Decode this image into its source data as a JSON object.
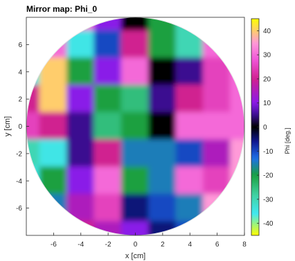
{
  "chart_data": {
    "type": "heatmap",
    "title": "Mirror map: Phi_0",
    "xlabel": "x [cm]",
    "ylabel": "y [cm]",
    "xlim": [
      -8,
      8
    ],
    "ylim": [
      -8,
      8
    ],
    "x_ticks": [
      -6,
      -4,
      -2,
      0,
      2,
      4,
      6,
      8
    ],
    "y_ticks": [
      6,
      4,
      2,
      0,
      -2,
      -4,
      -6
    ],
    "colorbar": {
      "label": "Phi [deg.]",
      "range": [
        -45,
        45
      ],
      "ticks": [
        40,
        30,
        20,
        10,
        0,
        -10,
        -20,
        -30,
        -40
      ],
      "colormap": "cyclic",
      "stops": [
        {
          "value": 45,
          "color": "#ffff00"
        },
        {
          "value": 35,
          "color": "#ff9ad8"
        },
        {
          "value": 28,
          "color": "#f056d8"
        },
        {
          "value": 20,
          "color": "#d02090"
        },
        {
          "value": 10,
          "color": "#8a1ae8"
        },
        {
          "value": 5,
          "color": "#3a1090"
        },
        {
          "value": 0,
          "color": "#000000"
        },
        {
          "value": -6,
          "color": "#101890"
        },
        {
          "value": -13,
          "color": "#1e6fe8"
        },
        {
          "value": -20,
          "color": "#1aa040"
        },
        {
          "value": -28,
          "color": "#40d0a0"
        },
        {
          "value": -36,
          "color": "#40e8f0"
        },
        {
          "value": -45,
          "color": "#ffff00"
        }
      ]
    },
    "aperture": {
      "center_x": 0,
      "center_y": 0,
      "radius": 8
    },
    "data_grid": {
      "x": [
        -8,
        -6,
        -4,
        -2,
        0,
        2,
        4,
        6,
        8
      ],
      "y": [
        8,
        6,
        4,
        2,
        0,
        -2,
        -4,
        -6,
        -8
      ],
      "values": [
        [
          35,
          35,
          30,
          10,
          0,
          -20,
          -30,
          -40,
          40
        ],
        [
          35,
          30,
          -35,
          -10,
          20,
          -20,
          -30,
          30,
          35
        ],
        [
          -35,
          40,
          -20,
          10,
          30,
          0,
          5,
          25,
          30
        ],
        [
          20,
          40,
          10,
          -20,
          -25,
          5,
          20,
          25,
          30
        ],
        [
          25,
          20,
          5,
          -25,
          -20,
          0,
          30,
          30,
          30
        ],
        [
          -30,
          -35,
          5,
          20,
          -15,
          -15,
          -10,
          15,
          35
        ],
        [
          -35,
          -20,
          10,
          30,
          -20,
          -15,
          30,
          25,
          35
        ],
        [
          -30,
          -15,
          15,
          25,
          -5,
          -10,
          -15,
          35,
          35
        ],
        [
          -25,
          -20,
          20,
          15,
          10,
          -5,
          -10,
          35,
          30
        ]
      ]
    }
  }
}
